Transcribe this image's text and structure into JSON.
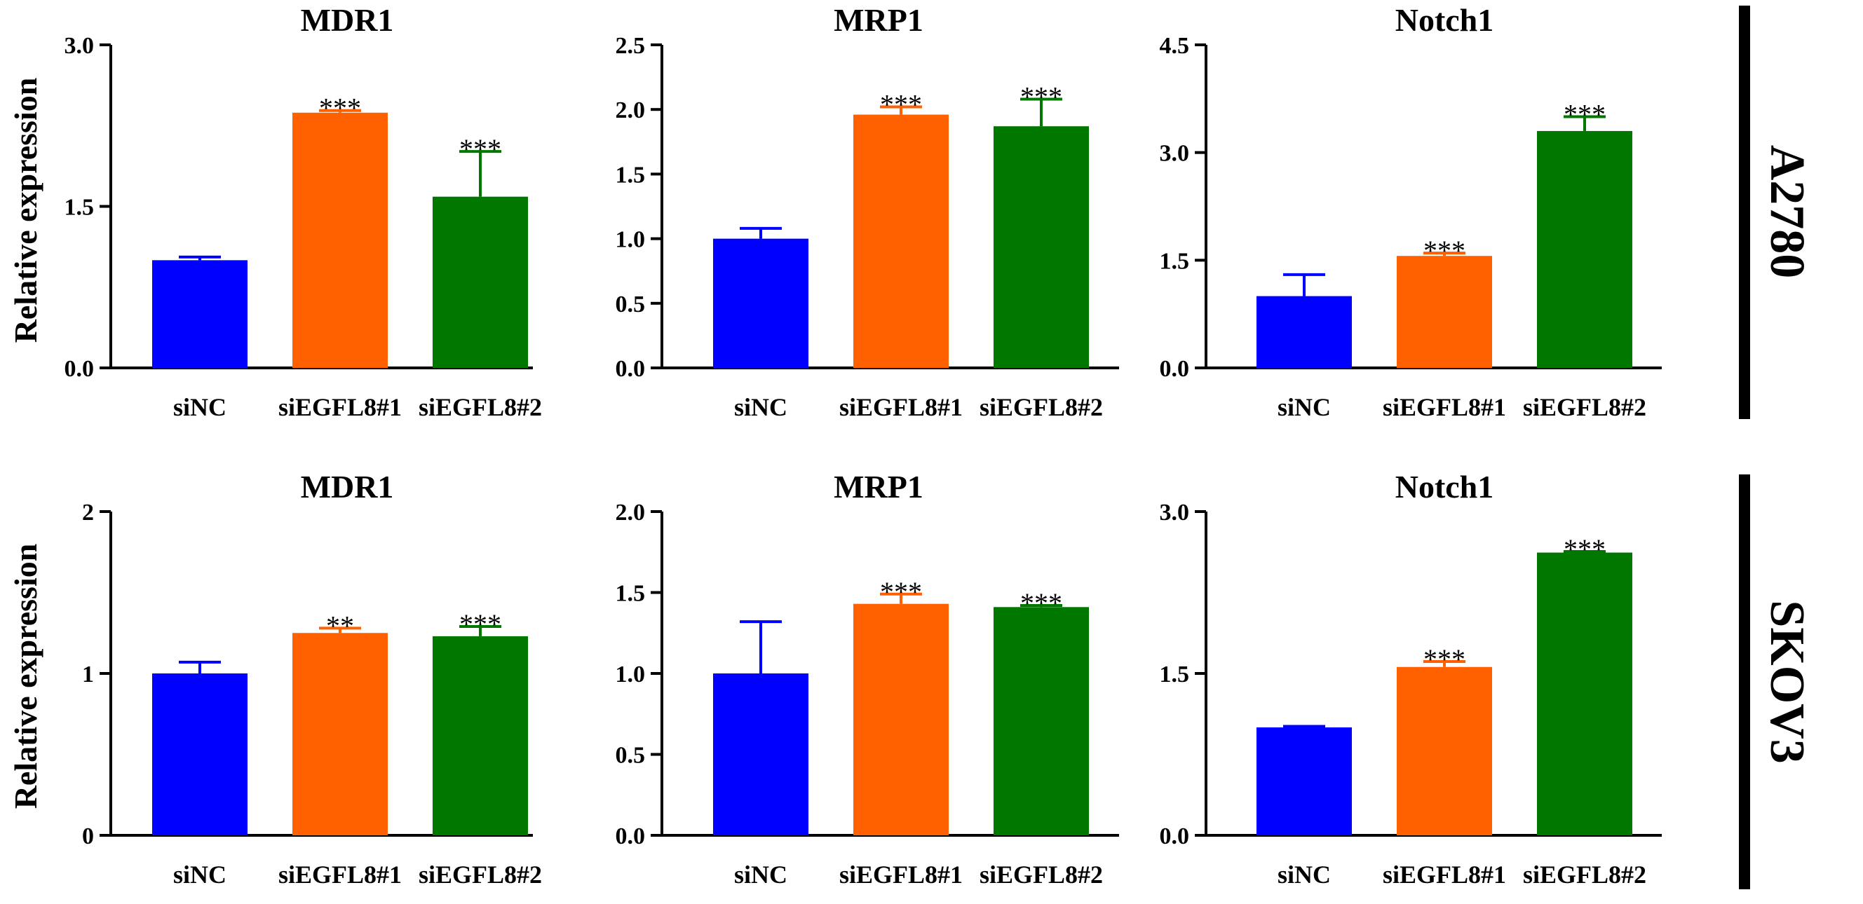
{
  "colors": {
    "siNC": "#0000ff",
    "siEGFL8#1": "#ff6000",
    "siEGFL8#2": "#007800",
    "axis": "#000000"
  },
  "row_labels": [
    "A2780",
    "SKOV3"
  ],
  "ylabel": "Relative expression",
  "chart_data": [
    {
      "type": "bar",
      "title": "MDR1",
      "row": "A2780",
      "categories": [
        "siNC",
        "siEGFL8#1",
        "siEGFL8#2"
      ],
      "values": [
        1.0,
        2.37,
        1.59
      ],
      "errors": [
        0.03,
        0.02,
        0.42
      ],
      "significance": [
        "",
        "***",
        "***"
      ],
      "ylim": [
        0,
        3.0
      ],
      "yticks": [
        "0.0",
        "1.5",
        "3.0"
      ],
      "ylabel": "Relative expression"
    },
    {
      "type": "bar",
      "title": "MRP1",
      "row": "A2780",
      "categories": [
        "siNC",
        "siEGFL8#1",
        "siEGFL8#2"
      ],
      "values": [
        1.0,
        1.96,
        1.87
      ],
      "errors": [
        0.08,
        0.06,
        0.21
      ],
      "significance": [
        "",
        "***",
        "***"
      ],
      "ylim": [
        0,
        2.5
      ],
      "yticks": [
        "0.0",
        "0.5",
        "1.0",
        "1.5",
        "2.0",
        "2.5"
      ],
      "ylabel": ""
    },
    {
      "type": "bar",
      "title": "Notch1",
      "row": "A2780",
      "categories": [
        "siNC",
        "siEGFL8#1",
        "siEGFL8#2"
      ],
      "values": [
        1.0,
        1.56,
        3.3
      ],
      "errors": [
        0.3,
        0.04,
        0.2
      ],
      "significance": [
        "",
        "***",
        "***"
      ],
      "ylim": [
        0,
        4.5
      ],
      "yticks": [
        "0.0",
        "1.5",
        "3.0",
        "4.5"
      ],
      "ylabel": ""
    },
    {
      "type": "bar",
      "title": "MDR1",
      "row": "SKOV3",
      "categories": [
        "siNC",
        "siEGFL8#1",
        "siEGFL8#2"
      ],
      "values": [
        1.0,
        1.25,
        1.23
      ],
      "errors": [
        0.07,
        0.03,
        0.06
      ],
      "significance": [
        "",
        "**",
        "***"
      ],
      "ylim": [
        0,
        2
      ],
      "yticks": [
        "0",
        "1",
        "2"
      ],
      "ylabel": "Relative expression"
    },
    {
      "type": "bar",
      "title": "MRP1",
      "row": "SKOV3",
      "categories": [
        "siNC",
        "siEGFL8#1",
        "siEGFL8#2"
      ],
      "values": [
        1.0,
        1.43,
        1.41
      ],
      "errors": [
        0.32,
        0.06,
        0.01
      ],
      "significance": [
        "",
        "***",
        "***"
      ],
      "ylim": [
        0,
        2.0
      ],
      "yticks": [
        "0.0",
        "0.5",
        "1.0",
        "1.5",
        "2.0"
      ],
      "ylabel": ""
    },
    {
      "type": "bar",
      "title": "Notch1",
      "row": "SKOV3",
      "categories": [
        "siNC",
        "siEGFL8#1",
        "siEGFL8#2"
      ],
      "values": [
        1.0,
        1.56,
        2.62
      ],
      "errors": [
        0.01,
        0.05,
        0.01
      ],
      "significance": [
        "",
        "***",
        "***"
      ],
      "ylim": [
        0,
        3.0
      ],
      "yticks": [
        "0.0",
        "1.5",
        "3.0"
      ],
      "ylabel": ""
    }
  ]
}
